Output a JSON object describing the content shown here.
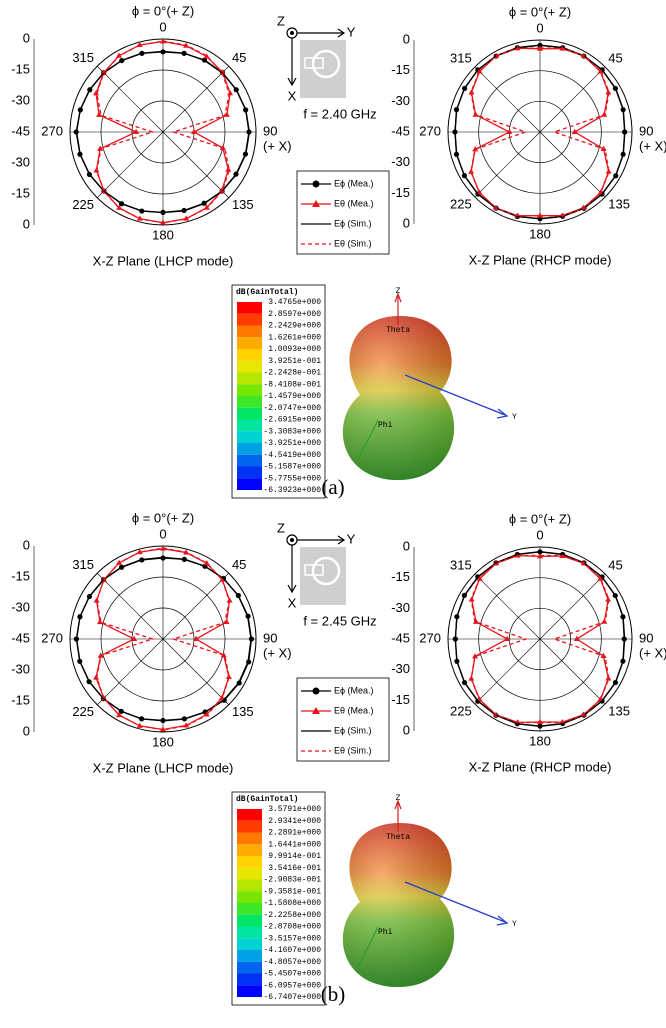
{
  "chart_data": [
    {
      "type": "polar",
      "title": "ϕ = 0°(+ Z)",
      "xlabel": "X-Z Plane (LHCP mode)",
      "direction_note": "(+ X)",
      "rlim": [
        -45,
        0
      ],
      "rticks": [
        -45,
        -30,
        -15,
        0
      ],
      "thetaticks": [
        0,
        45,
        90,
        135,
        180,
        225,
        270,
        315
      ],
      "theta": [
        0,
        15,
        30,
        45,
        60,
        75,
        90,
        105,
        120,
        135,
        150,
        165,
        180,
        195,
        210,
        225,
        240,
        255,
        270,
        285,
        300,
        315,
        330,
        345
      ],
      "series": [
        {
          "name": "Eϕ (Mea.)",
          "color": "#000000",
          "marker": "circle",
          "line_style": "solid",
          "values": [
            -6.2,
            -5.6,
            -4.8,
            -4.3,
            -4.1,
            -3.6,
            -3.4,
            -3.7,
            -4.2,
            -4.6,
            -5.2,
            -5.7,
            -6.1,
            -5.4,
            -4.9,
            -4.6,
            -3.9,
            -3.4,
            -3.0,
            -3.6,
            -4.1,
            -4.4,
            -5.1,
            -5.6
          ]
        },
        {
          "name": "Eθ (Mea.)",
          "color": "#e8141b",
          "marker": "triangle",
          "line_style": "solid",
          "values": [
            -1.2,
            -1.8,
            -2.8,
            -4.2,
            -7.5,
            -13,
            -30,
            -15,
            -8.5,
            -4.8,
            -2.7,
            -1.6,
            -1.1,
            -1.6,
            -2.6,
            -4.6,
            -7.8,
            -13.5,
            -32,
            -13,
            -7.6,
            -4.4,
            -2.4,
            -1.4
          ]
        },
        {
          "name": "Eϕ (Sim.)",
          "color": "#000000",
          "marker": "none",
          "line_style": "solid",
          "values": [
            -6,
            -5.5,
            -5,
            -4.5,
            -4,
            -3.5,
            -3.2,
            -3.5,
            -4,
            -4.5,
            -5,
            -5.5,
            -6,
            -5.5,
            -5,
            -4.5,
            -4,
            -3.5,
            -3.2,
            -3.5,
            -4,
            -4.5,
            -5,
            -5.5
          ]
        },
        {
          "name": "Eθ (Sim.)",
          "color": "#e8141b",
          "marker": "none",
          "line_style": "dashed",
          "values": [
            -1,
            -1.5,
            -2.5,
            -4.5,
            -8,
            -14,
            -40,
            -14,
            -8,
            -4.5,
            -2.5,
            -1.5,
            -1,
            -1.5,
            -2.5,
            -4.5,
            -8,
            -14,
            -40,
            -14,
            -8,
            -4.5,
            -2.5,
            -1.5
          ]
        }
      ]
    },
    {
      "type": "polar",
      "title": "ϕ = 0°(+ Z)",
      "xlabel": "X-Z Plane (RHCP mode)",
      "direction_note": "(+ X)",
      "rlim": [
        -45,
        0
      ],
      "rticks": [
        -45,
        -30,
        -15,
        0
      ],
      "thetaticks": [
        0,
        45,
        90,
        135,
        180,
        225,
        270,
        315
      ],
      "theta": [
        0,
        15,
        30,
        45,
        60,
        75,
        90,
        105,
        120,
        135,
        150,
        165,
        180,
        195,
        210,
        225,
        240,
        255,
        270,
        285,
        300,
        315,
        330,
        345
      ],
      "series": [
        {
          "name": "Eϕ (Mea.)",
          "color": "#000000",
          "marker": "circle",
          "line_style": "solid",
          "values": [
            -2.6,
            -2.3,
            -2.1,
            -2.0,
            -2.4,
            -2.9,
            -3.6,
            -2.9,
            -2.2,
            -2.1,
            -1.9,
            -2.3,
            -2.6,
            -2.2,
            -2.0,
            -2.1,
            -2.3,
            -2.7,
            -3.4,
            -2.7,
            -2.4,
            -2.0,
            -2.1,
            -2.3
          ]
        },
        {
          "name": "Eθ (Mea.)",
          "color": "#e8141b",
          "marker": "triangle",
          "line_style": "solid",
          "values": [
            -4.3,
            -2.8,
            -2.1,
            -3.2,
            -6.4,
            -12.5,
            -28,
            -12.8,
            -6.2,
            -3.1,
            -2.2,
            -2.7,
            -4.1,
            -2.6,
            -2.0,
            -3.1,
            -6.1,
            -12.2,
            -30,
            -12.4,
            -6.3,
            -3.2,
            -2.1,
            -2.6
          ]
        },
        {
          "name": "Eϕ (Sim.)",
          "color": "#000000",
          "marker": "none",
          "line_style": "solid",
          "values": [
            -2.5,
            -2.2,
            -2,
            -2,
            -2.3,
            -2.8,
            -3.5,
            -2.8,
            -2.3,
            -2,
            -2,
            -2.2,
            -2.5,
            -2.2,
            -2,
            -2,
            -2.3,
            -2.8,
            -3.5,
            -2.8,
            -2.3,
            -2,
            -2,
            -2.2
          ]
        },
        {
          "name": "Eθ (Sim.)",
          "color": "#e8141b",
          "marker": "none",
          "line_style": "dashed",
          "values": [
            -4,
            -2.5,
            -2,
            -3,
            -6,
            -12,
            -38,
            -12,
            -6,
            -3,
            -2,
            -2.5,
            -4,
            -2.5,
            -2,
            -3,
            -6,
            -12,
            -38,
            -12,
            -6,
            -3,
            -2,
            -2.5
          ]
        }
      ]
    },
    {
      "type": "polar",
      "title": "ϕ = 0°(+ Z)",
      "xlabel": "X-Z Plane (LHCP mode)",
      "direction_note": "(+ X)",
      "rlim": [
        -45,
        0
      ],
      "rticks": [
        -45,
        -30,
        -15,
        0
      ],
      "thetaticks": [
        0,
        45,
        90,
        135,
        180,
        225,
        270,
        315
      ],
      "theta": [
        0,
        15,
        30,
        45,
        60,
        75,
        90,
        105,
        120,
        135,
        150,
        165,
        180,
        195,
        210,
        225,
        240,
        255,
        270,
        285,
        300,
        315,
        330,
        345
      ],
      "series": [
        {
          "name": "Eϕ (Mea.)",
          "color": "#000000",
          "marker": "circle",
          "line_style": "solid",
          "values": [
            -5.8,
            -5.1,
            -4.4,
            -3.6,
            -2.9,
            -2.4,
            -2.2,
            -2.1,
            -2.4,
            -3.1,
            -4.2,
            -5.0,
            -5.6,
            -5.0,
            -4.6,
            -4.2,
            -3.7,
            -3.3,
            -3.1,
            -3.4,
            -3.9,
            -4.4,
            -4.9,
            -5.4
          ]
        },
        {
          "name": "Eθ (Mea.)",
          "color": "#e8141b",
          "marker": "triangle",
          "line_style": "solid",
          "values": [
            -1.3,
            -1.7,
            -2.7,
            -4.4,
            -7.8,
            -13.2,
            -29,
            -14.6,
            -8.2,
            -4.7,
            -2.8,
            -1.7,
            -1.2,
            -1.5,
            -2.5,
            -4.5,
            -7.6,
            -13.8,
            -31,
            -13.4,
            -7.9,
            -4.5,
            -2.5,
            -1.5
          ]
        },
        {
          "name": "Eϕ (Sim.)",
          "color": "#000000",
          "marker": "none",
          "line_style": "solid",
          "values": [
            -5.5,
            -5,
            -4.3,
            -3.6,
            -3,
            -2.6,
            -2.4,
            -2.4,
            -2.7,
            -3.3,
            -4.2,
            -4.9,
            -5.4,
            -5,
            -4.6,
            -4.2,
            -3.8,
            -3.4,
            -3.2,
            -3.4,
            -3.8,
            -4.3,
            -4.8,
            -5.2
          ]
        },
        {
          "name": "Eθ (Sim.)",
          "color": "#e8141b",
          "marker": "none",
          "line_style": "dashed",
          "values": [
            -1,
            -1.5,
            -2.5,
            -4.5,
            -8,
            -14,
            -40,
            -14,
            -8,
            -4.5,
            -2.5,
            -1.5,
            -1,
            -1.5,
            -2.5,
            -4.5,
            -8,
            -14,
            -40,
            -14,
            -8,
            -4.5,
            -2.5,
            -1.5
          ]
        }
      ]
    },
    {
      "type": "polar",
      "title": "ϕ = 0°(+ Z)",
      "xlabel": "X-Z Plane (RHCP mode)",
      "direction_note": "(+ X)",
      "rlim": [
        -45,
        0
      ],
      "rticks": [
        -45,
        -30,
        -15,
        0
      ],
      "thetaticks": [
        0,
        45,
        90,
        135,
        180,
        225,
        270,
        315
      ],
      "theta": [
        0,
        15,
        30,
        45,
        60,
        75,
        90,
        105,
        120,
        135,
        150,
        165,
        180,
        195,
        210,
        225,
        240,
        255,
        270,
        285,
        300,
        315,
        330,
        345
      ],
      "series": [
        {
          "name": "Eϕ (Mea.)",
          "color": "#000000",
          "marker": "circle",
          "line_style": "solid",
          "values": [
            -2.4,
            -2.2,
            -2.0,
            -2.1,
            -2.5,
            -3.0,
            -3.8,
            -3.0,
            -2.4,
            -2.1,
            -2.0,
            -2.2,
            -2.4,
            -2.1,
            -1.9,
            -2.0,
            -2.4,
            -2.9,
            -3.6,
            -2.9,
            -2.3,
            -2.0,
            -2.0,
            -2.2
          ]
        },
        {
          "name": "Eθ (Mea.)",
          "color": "#e8141b",
          "marker": "triangle",
          "line_style": "solid",
          "values": [
            -4.6,
            -3.0,
            -2.2,
            -3.3,
            -6.5,
            -12.4,
            -27,
            -12.9,
            -6.4,
            -3.2,
            -2.3,
            -2.9,
            -4.4,
            -2.8,
            -2.1,
            -3.2,
            -6.2,
            -12.1,
            -29,
            -12.6,
            -6.4,
            -3.3,
            -2.2,
            -2.8
          ]
        },
        {
          "name": "Eϕ (Sim.)",
          "color": "#000000",
          "marker": "none",
          "line_style": "solid",
          "values": [
            -2.3,
            -2.1,
            -2,
            -2.1,
            -2.4,
            -2.9,
            -3.6,
            -2.9,
            -2.4,
            -2.1,
            -2,
            -2.1,
            -2.3,
            -2.1,
            -2,
            -2.1,
            -2.4,
            -2.9,
            -3.6,
            -2.9,
            -2.4,
            -2.1,
            -2,
            -2.1
          ]
        },
        {
          "name": "Eθ (Sim.)",
          "color": "#e8141b",
          "marker": "none",
          "line_style": "dashed",
          "values": [
            -4.2,
            -2.7,
            -2.1,
            -3.1,
            -6.1,
            -12,
            -38,
            -12,
            -6.1,
            -3.1,
            -2.1,
            -2.7,
            -4.2,
            -2.7,
            -2.1,
            -3.1,
            -6.1,
            -12,
            -38,
            -12,
            -6.1,
            -3.1,
            -2.1,
            -2.7
          ]
        }
      ]
    }
  ],
  "panels": [
    {
      "caption": "(a)",
      "frequency": "f = 2.40 GHz",
      "axes": [
        "Z",
        "Y",
        "X"
      ],
      "colorbar": {
        "title": "dB(GainTotal)",
        "labels": [
          "3.4765e+000",
          "2.8597e+000",
          "2.2429e+000",
          "1.6261e+000",
          "1.0093e+000",
          "3.9251e-001",
          "-2.2428e-001",
          "-8.4108e-001",
          "-1.4579e+000",
          "-2.0747e+000",
          "-2.6915e+000",
          "-3.3083e+000",
          "-3.9251e+000",
          "-4.5419e+000",
          "-5.1587e+000",
          "-5.7755e+000",
          "-6.3923e+000"
        ]
      },
      "pattern_labels": [
        "Z",
        "Theta",
        "Phi",
        "Y"
      ]
    },
    {
      "caption": "(b)",
      "frequency": "f = 2.45 GHz",
      "axes": [
        "Z",
        "Y",
        "X"
      ],
      "colorbar": {
        "title": "dB(GainTotal)",
        "labels": [
          "3.5791e+000",
          "2.9341e+000",
          "2.2891e+000",
          "1.6441e+000",
          "9.9914e-001",
          "3.5416e-001",
          "-2.9083e-001",
          "-9.3581e-001",
          "-1.5808e+000",
          "-2.2258e+000",
          "-2.8708e+000",
          "-3.5157e+000",
          "-4.1607e+000",
          "-4.8057e+000",
          "-5.4507e+000",
          "-6.0957e+000",
          "-6.7407e+000"
        ]
      },
      "pattern_labels": [
        "Z",
        "Theta",
        "Phi",
        "Y"
      ]
    }
  ]
}
